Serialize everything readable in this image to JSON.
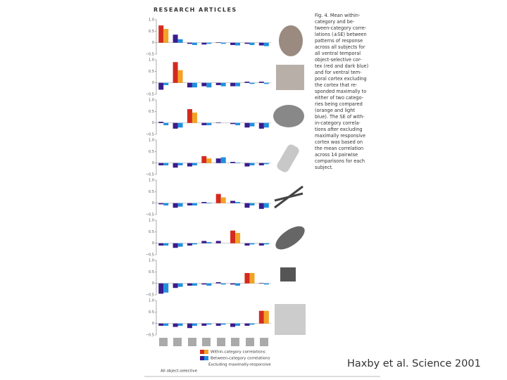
{
  "header": "RESEARCH ARTICLES",
  "caption": [
    "Fig. 4. Mean within-",
    "category and be-",
    "tween-category corre-",
    "lations (±SE) between",
    "patterns of response",
    "across all subjects for",
    "all ventral temporal",
    "object-selective cor-",
    "tex (red and dark blue)",
    "and for ventral tem-",
    "poral cortex excluding",
    "the cortex that re-",
    "sponded maximally to",
    "either of two catego-",
    "ries being compared",
    "(orange and light",
    "blue). The SE of with-",
    "in-category correla-",
    "tions after excluding",
    "maximally responsive",
    "cortex was based on",
    "the mean correlation",
    "across 14 pairwise",
    "comparisons for each",
    "subject."
  ],
  "legend": {
    "within": "Within-category correlations",
    "between": "Between-category correlations",
    "excluding": "Excluding maximally-responsive",
    "all": "All object-selective"
  },
  "credit": "Haxby et al. Science 2001",
  "chart_data": [
    {
      "type": "bar",
      "ylim": [
        -0.5,
        1
      ],
      "yticks": [
        {
          "value": 1,
          "label": "1.0"
        },
        0.5,
        0,
        {
          "value": -0.5,
          "label": "−0.5"
        }
      ],
      "series": [
        {
          "values": [
            0.75,
            0.35,
            -0.05,
            -0.08,
            0.02,
            -0.1,
            -0.05,
            -0.12
          ],
          "colors": [
            "#d42a1e",
            "#3b1c8c",
            "#3b1c8c",
            "#3b1c8c",
            "#3b1c8c",
            "#3b1c8c",
            "#3b1c8c",
            "#3b1c8c"
          ]
        },
        {
          "values": [
            0.6,
            0.15,
            -0.1,
            -0.05,
            -0.05,
            -0.12,
            -0.1,
            -0.15
          ],
          "colors": [
            "#f2a324",
            "#1e90e0",
            "#1e90e0",
            "#1e90e0",
            "#1e90e0",
            "#1e90e0",
            "#1e90e0",
            "#1e90e0"
          ]
        }
      ]
    },
    {
      "type": "bar",
      "ylim": [
        -0.5,
        1
      ],
      "yticks": [
        {
          "value": 1,
          "label": "1.0"
        },
        0.5,
        0,
        {
          "value": -0.5,
          "label": "−0.5"
        }
      ],
      "series": [
        {
          "values": [
            -0.3,
            0.9,
            -0.2,
            -0.15,
            -0.1,
            -0.15,
            0.05,
            0.05
          ],
          "colors": [
            "#3b1c8c",
            "#d42a1e",
            "#3b1c8c",
            "#3b1c8c",
            "#3b1c8c",
            "#3b1c8c",
            "#3b1c8c",
            "#3b1c8c"
          ]
        },
        {
          "values": [
            -0.1,
            0.55,
            -0.2,
            -0.2,
            -0.15,
            -0.15,
            -0.05,
            -0.05
          ],
          "colors": [
            "#1e90e0",
            "#f2a324",
            "#1e90e0",
            "#1e90e0",
            "#1e90e0",
            "#1e90e0",
            "#1e90e0",
            "#1e90e0"
          ]
        }
      ]
    },
    {
      "type": "bar",
      "ylim": [
        -0.5,
        1
      ],
      "yticks": [
        {
          "value": 1,
          "label": "1.0"
        },
        0.5,
        0,
        {
          "value": -0.5,
          "label": "−0.5"
        }
      ],
      "series": [
        {
          "values": [
            0.05,
            -0.25,
            0.6,
            -0.1,
            0.02,
            -0.05,
            -0.2,
            -0.25
          ],
          "colors": [
            "#3b1c8c",
            "#3b1c8c",
            "#d42a1e",
            "#3b1c8c",
            "#3b1c8c",
            "#3b1c8c",
            "#3b1c8c",
            "#3b1c8c"
          ]
        },
        {
          "values": [
            -0.1,
            -0.2,
            0.45,
            -0.1,
            0,
            -0.1,
            -0.15,
            -0.2
          ],
          "colors": [
            "#1e90e0",
            "#1e90e0",
            "#f2a324",
            "#1e90e0",
            "#1e90e0",
            "#1e90e0",
            "#1e90e0",
            "#1e90e0"
          ]
        }
      ]
    },
    {
      "type": "bar",
      "ylim": [
        -0.5,
        1
      ],
      "yticks": [
        {
          "value": 1,
          "label": "1.0"
        },
        0.5,
        0,
        {
          "value": -0.5,
          "label": "−0.5"
        }
      ],
      "series": [
        {
          "values": [
            -0.1,
            -0.2,
            -0.15,
            0.3,
            0.2,
            0.05,
            -0.15,
            -0.1
          ],
          "colors": [
            "#3b1c8c",
            "#3b1c8c",
            "#3b1c8c",
            "#d42a1e",
            "#3b1c8c",
            "#3b1c8c",
            "#3b1c8c",
            "#3b1c8c"
          ]
        },
        {
          "values": [
            -0.1,
            -0.1,
            -0.1,
            0.2,
            0.25,
            0.02,
            -0.1,
            -0.05
          ],
          "colors": [
            "#1e90e0",
            "#1e90e0",
            "#1e90e0",
            "#f2a324",
            "#1e90e0",
            "#1e90e0",
            "#1e90e0",
            "#1e90e0"
          ]
        }
      ]
    },
    {
      "type": "bar",
      "ylim": [
        -0.5,
        1
      ],
      "yticks": [
        {
          "value": 1,
          "label": "1.0"
        },
        0.5,
        0,
        {
          "value": -0.5,
          "label": "−0.5"
        }
      ],
      "series": [
        {
          "values": [
            -0.05,
            -0.2,
            -0.1,
            0.05,
            0.4,
            0.1,
            -0.2,
            -0.25
          ],
          "colors": [
            "#3b1c8c",
            "#3b1c8c",
            "#3b1c8c",
            "#3b1c8c",
            "#d42a1e",
            "#3b1c8c",
            "#3b1c8c",
            "#3b1c8c"
          ]
        },
        {
          "values": [
            -0.1,
            -0.15,
            -0.1,
            0.02,
            0.25,
            0.05,
            -0.1,
            -0.2
          ],
          "colors": [
            "#1e90e0",
            "#1e90e0",
            "#1e90e0",
            "#1e90e0",
            "#f2a324",
            "#1e90e0",
            "#1e90e0",
            "#1e90e0"
          ]
        }
      ]
    },
    {
      "type": "bar",
      "ylim": [
        -0.5,
        1
      ],
      "yticks": [
        {
          "value": 1,
          "label": "1.0"
        },
        0.5,
        0,
        {
          "value": -0.5,
          "label": "−0.5"
        }
      ],
      "series": [
        {
          "values": [
            -0.1,
            -0.2,
            -0.1,
            0.1,
            0.1,
            0.55,
            -0.1,
            -0.1
          ],
          "colors": [
            "#3b1c8c",
            "#3b1c8c",
            "#3b1c8c",
            "#3b1c8c",
            "#3b1c8c",
            "#d42a1e",
            "#3b1c8c",
            "#3b1c8c"
          ]
        },
        {
          "values": [
            -0.1,
            -0.15,
            -0.05,
            0.05,
            0,
            0.45,
            -0.05,
            -0.05
          ],
          "colors": [
            "#1e90e0",
            "#1e90e0",
            "#1e90e0",
            "#1e90e0",
            "#1e90e0",
            "#f2a324",
            "#1e90e0",
            "#1e90e0"
          ]
        }
      ]
    },
    {
      "type": "bar",
      "ylim": [
        -0.5,
        1
      ],
      "yticks": [
        {
          "value": 1,
          "label": "1.0"
        },
        0.5,
        0,
        {
          "value": -0.5,
          "label": "−0.5"
        }
      ],
      "series": [
        {
          "values": [
            -0.45,
            -0.2,
            -0.1,
            -0.05,
            0.05,
            -0.05,
            0.45,
            0.02
          ],
          "colors": [
            "#3b1c8c",
            "#3b1c8c",
            "#3b1c8c",
            "#3b1c8c",
            "#3b1c8c",
            "#3b1c8c",
            "#d42a1e",
            "#3b1c8c"
          ]
        },
        {
          "values": [
            -0.4,
            -0.15,
            -0.1,
            -0.1,
            -0.05,
            -0.1,
            0.45,
            -0.05
          ],
          "colors": [
            "#1e90e0",
            "#1e90e0",
            "#1e90e0",
            "#1e90e0",
            "#1e90e0",
            "#1e90e0",
            "#f2a324",
            "#1e90e0"
          ]
        }
      ]
    },
    {
      "type": "bar",
      "ylim": [
        -0.5,
        1
      ],
      "yticks": [
        {
          "value": 1,
          "label": "1.0"
        },
        0.5,
        0,
        {
          "value": -0.5,
          "label": "−0.5"
        }
      ],
      "series": [
        {
          "values": [
            -0.1,
            -0.15,
            -0.2,
            -0.1,
            -0.1,
            -0.15,
            -0.1,
            0.55
          ],
          "colors": [
            "#3b1c8c",
            "#3b1c8c",
            "#3b1c8c",
            "#3b1c8c",
            "#3b1c8c",
            "#3b1c8c",
            "#3b1c8c",
            "#d42a1e"
          ]
        },
        {
          "values": [
            -0.1,
            -0.1,
            -0.1,
            -0.05,
            -0.05,
            -0.1,
            -0.05,
            0.55
          ],
          "colors": [
            "#1e90e0",
            "#1e90e0",
            "#1e90e0",
            "#1e90e0",
            "#1e90e0",
            "#1e90e0",
            "#1e90e0",
            "#f2a324"
          ]
        }
      ]
    }
  ]
}
